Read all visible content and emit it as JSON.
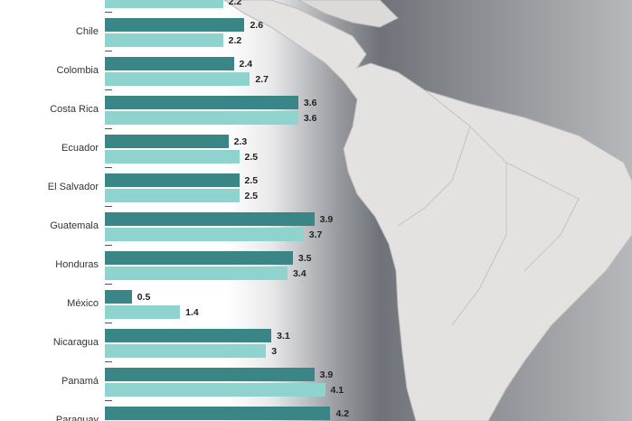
{
  "chart_data": {
    "type": "bar",
    "orientation": "horizontal",
    "title": "",
    "xlabel": "",
    "ylabel": "",
    "xlim": [
      0,
      4.5
    ],
    "grid": false,
    "legend": "none",
    "categories": [
      "",
      "Chile",
      "Colombia",
      "Costa Rica",
      "Ecuador",
      "El Salvador",
      "Guatemala",
      "Honduras",
      "México",
      "Nicaragua",
      "Panamá",
      "Paraguay"
    ],
    "series": [
      {
        "name": "series-1",
        "color": "#3a8585",
        "values": [
          null,
          2.6,
          2.4,
          3.6,
          2.3,
          2.5,
          3.9,
          3.5,
          0.5,
          3.1,
          3.9,
          4.2
        ]
      },
      {
        "name": "series-2",
        "color": "#8fd3cf",
        "values": [
          2.2,
          2.2,
          2.7,
          3.6,
          2.5,
          2.5,
          3.7,
          3.4,
          1.4,
          3,
          4.1,
          null
        ]
      }
    ]
  }
}
